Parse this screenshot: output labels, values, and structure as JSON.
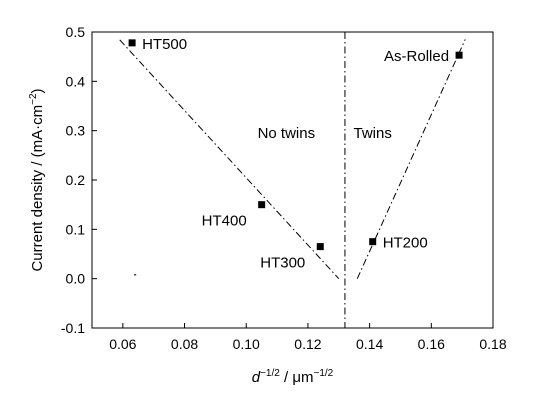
{
  "chart_data": {
    "type": "scatter",
    "xlabel": {
      "main": "d",
      "exp1": "−1/2",
      "mid": " / μm",
      "exp2": "−1/2"
    },
    "ylabel": {
      "main": "Current density / (mA·cm",
      "exp": "−2",
      "end": ")"
    },
    "xlim": [
      0.05,
      0.18
    ],
    "ylim": [
      -0.1,
      0.5
    ],
    "xticks": [
      {
        "value": 0.06,
        "label": "0.06"
      },
      {
        "value": 0.08,
        "label": "0.08"
      },
      {
        "value": 0.1,
        "label": "0.10"
      },
      {
        "value": 0.12,
        "label": "0.12"
      },
      {
        "value": 0.14,
        "label": "0.14"
      },
      {
        "value": 0.16,
        "label": "0.16"
      },
      {
        "value": 0.18,
        "label": "0.18"
      }
    ],
    "yticks": [
      {
        "value": 0.5,
        "label": "0.5"
      },
      {
        "value": 0.4,
        "label": "0.4"
      },
      {
        "value": 0.3,
        "label": "0.3"
      },
      {
        "value": 0.2,
        "label": "0.2"
      },
      {
        "value": 0.1,
        "label": "0.1"
      },
      {
        "value": 0.0,
        "label": "0.0"
      },
      {
        "value": -0.1,
        "label": "-0.1"
      }
    ],
    "points": [
      {
        "label": "HT500",
        "x": 0.063,
        "y": 0.478,
        "label_pos": "right"
      },
      {
        "label": "HT400",
        "x": 0.105,
        "y": 0.15,
        "label_pos": "below-left"
      },
      {
        "label": "HT300",
        "x": 0.124,
        "y": 0.065,
        "label_pos": "below-left"
      },
      {
        "label": "HT200",
        "x": 0.141,
        "y": 0.075,
        "label_pos": "right"
      },
      {
        "label": "As-Rolled",
        "x": 0.169,
        "y": 0.453,
        "label_pos": "left"
      }
    ],
    "fit_lines": [
      {
        "x": [
          0.059,
          0.13
        ],
        "y": [
          0.484,
          0.0
        ],
        "style": "dash-dot"
      },
      {
        "x": [
          0.136,
          0.171
        ],
        "y": [
          0.0,
          0.485
        ],
        "style": "dash-dot"
      }
    ],
    "divider": {
      "x": 0.132,
      "style": "dash-dot"
    },
    "stray_mark": {
      "x": 0.064,
      "y": 0.008
    },
    "annotations": [
      {
        "text": "No twins",
        "x": 0.113,
        "y": 0.285
      },
      {
        "text": "Twins",
        "x": 0.141,
        "y": 0.285
      }
    ],
    "grid": false,
    "legend": "none"
  }
}
